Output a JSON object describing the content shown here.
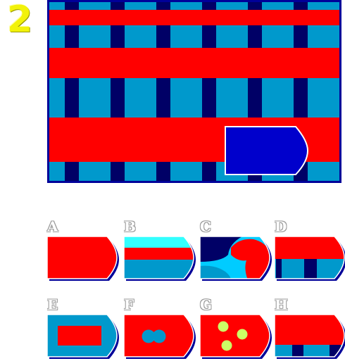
{
  "question": {
    "number": "2"
  },
  "colors": {
    "red": "#ff0000",
    "light_blue": "#0099cc",
    "navy": "#000066",
    "royal_blue": "#0000cc",
    "cyan": "#00ccff",
    "aqua": "#33ffff",
    "yellow_dot": "#ccff66",
    "frame": "#000099"
  },
  "options": [
    {
      "letter": "A",
      "pattern": "solid-red"
    },
    {
      "letter": "B",
      "pattern": "aqua-red-blue-bands"
    },
    {
      "letter": "C",
      "pattern": "navy-cyan-red-swirl"
    },
    {
      "letter": "D",
      "pattern": "red-over-striped-blue"
    },
    {
      "letter": "E",
      "pattern": "red-rectangle-on-blue"
    },
    {
      "letter": "F",
      "pattern": "blue-double-dot-on-red"
    },
    {
      "letter": "G",
      "pattern": "three-yellow-dots-on-red"
    },
    {
      "letter": "H",
      "pattern": "red-over-striped-blue"
    }
  ]
}
